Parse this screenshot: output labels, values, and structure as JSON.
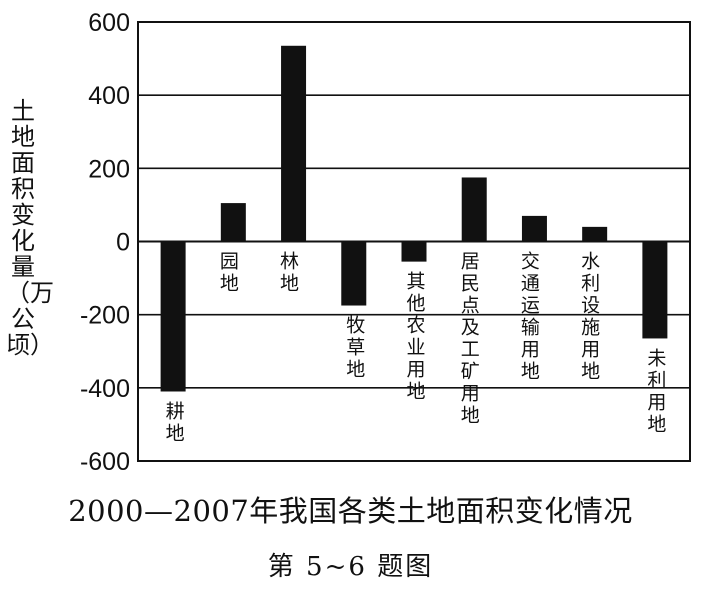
{
  "chart_data": {
    "type": "bar",
    "title": "2000—2007年我国各类土地面积变化情况",
    "subtitle": "第 5~6 题图",
    "ylabel": "土地面积变化量（万公顷）",
    "xlabel": "",
    "ylim": [
      -600,
      600
    ],
    "yticks": [
      600,
      400,
      200,
      0,
      -200,
      -400,
      -600
    ],
    "ytick_labels": [
      "600",
      "400",
      "200",
      "0",
      "-200",
      "-400",
      "-600"
    ],
    "grid": true,
    "categories": [
      "耕地",
      "园地",
      "林地",
      "牧草地",
      "其他农业用地",
      "居民点及工矿用地",
      "交通运输用地",
      "水利设施用地",
      "未利用地"
    ],
    "values": [
      -410,
      105,
      535,
      -175,
      -55,
      175,
      70,
      40,
      -265
    ],
    "bar_color": "#111111"
  }
}
